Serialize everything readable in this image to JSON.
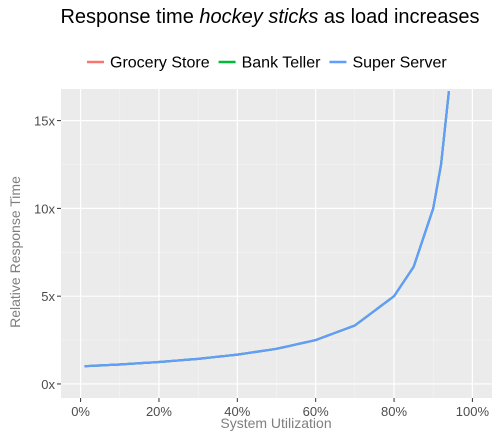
{
  "chart_data": {
    "type": "line",
    "title": {
      "before": "Response time ",
      "emphasis": "hockey sticks",
      "after": " as load increases"
    },
    "xlabel": "System Utilization",
    "ylabel": "Relative Response Time",
    "xlim": [
      -0.05,
      1.05
    ],
    "ylim": [
      -0.8,
      16.8
    ],
    "x_ticks": [
      0,
      0.2,
      0.4,
      0.6,
      0.8,
      1.0
    ],
    "x_tick_labels": [
      "0%",
      "20%",
      "40%",
      "60%",
      "80%",
      "100%"
    ],
    "y_ticks": [
      0,
      5,
      10,
      15
    ],
    "y_tick_labels": [
      "0x",
      "5x",
      "10x",
      "15x"
    ],
    "grid": true,
    "legend_position": "top",
    "series": [
      {
        "name": "Grocery Store",
        "color": "#F8766D",
        "x": [
          0.01,
          0.1,
          0.2,
          0.3,
          0.4,
          0.5,
          0.6,
          0.7,
          0.8,
          0.85,
          0.9,
          0.92,
          0.94
        ],
        "y": [
          1.01,
          1.11,
          1.25,
          1.43,
          1.67,
          2.0,
          2.5,
          3.33,
          5.0,
          6.67,
          10.0,
          12.5,
          16.67
        ]
      },
      {
        "name": "Bank Teller",
        "color": "#00BA38",
        "x": [
          0.01,
          0.1,
          0.2,
          0.3,
          0.4,
          0.5,
          0.6,
          0.7,
          0.8,
          0.85,
          0.9,
          0.92,
          0.94
        ],
        "y": [
          1.01,
          1.11,
          1.25,
          1.43,
          1.67,
          2.0,
          2.5,
          3.33,
          5.0,
          6.67,
          10.0,
          12.5,
          16.67
        ]
      },
      {
        "name": "Super Server",
        "color": "#619CFF",
        "x": [
          0.01,
          0.1,
          0.2,
          0.3,
          0.4,
          0.5,
          0.6,
          0.7,
          0.8,
          0.85,
          0.9,
          0.92,
          0.94
        ],
        "y": [
          1.01,
          1.11,
          1.25,
          1.43,
          1.67,
          2.0,
          2.5,
          3.33,
          5.0,
          6.67,
          10.0,
          12.5,
          16.67
        ]
      }
    ]
  }
}
